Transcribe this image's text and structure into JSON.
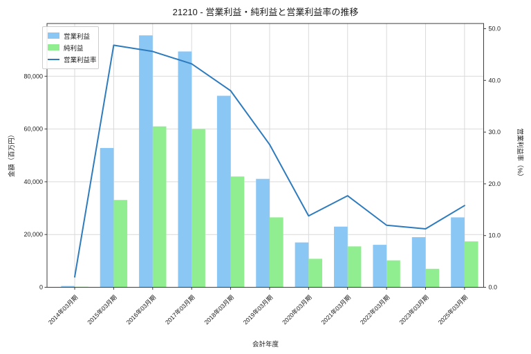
{
  "chart_data": {
    "type": "bar+line",
    "title": "21210 - 営業利益・純利益と営業利益率の推移",
    "xlabel": "会計年度",
    "ylabel_left": "金額（百万円）",
    "ylabel_right": "営業利益率（%）",
    "grid": true,
    "legend_position": "upper left",
    "categories": [
      "2014年03月期",
      "2015年03月期",
      "2016年03月期",
      "2017年03月期",
      "2018年03月期",
      "2019年03月期",
      "2020年03月期",
      "2021年03月期",
      "2022年03月期",
      "2023年03月期",
      "2025年03月期"
    ],
    "series": [
      {
        "name": "営業利益",
        "type": "bar",
        "color": "#8bc7f5",
        "values": [
          500,
          52800,
          95500,
          89400,
          72600,
          41100,
          17000,
          23000,
          16100,
          19000,
          26500
        ]
      },
      {
        "name": "純利益",
        "type": "bar",
        "color": "#90ee90",
        "values": [
          200,
          33100,
          61000,
          60000,
          42000,
          26500,
          10800,
          15500,
          10200,
          7000,
          17400
        ]
      }
    ],
    "line": {
      "name": "営業利益率",
      "type": "line",
      "color": "#2d7bbd",
      "unit": "%",
      "values": [
        2.0,
        46.8,
        45.6,
        43.2,
        38.0,
        27.6,
        13.8,
        17.7,
        12.0,
        11.3,
        15.8
      ]
    },
    "axes": {
      "left": {
        "ticks": [
          "0",
          "20,000",
          "40,000",
          "60,000",
          "80,000"
        ],
        "tick_values": [
          0,
          20000,
          40000,
          60000,
          80000
        ],
        "min": 0,
        "max": 100000
      },
      "right": {
        "ticks": [
          "0.0",
          "10.0",
          "20.0",
          "30.0",
          "40.0",
          "50.0"
        ],
        "tick_values": [
          0,
          10,
          20,
          30,
          40,
          50
        ],
        "min": 0,
        "max": 51
      }
    },
    "colors": {
      "grid": "#d9d9d9",
      "spine": "#3b3b3b",
      "text": "#1a1a1a",
      "background": "#ffffff"
    }
  }
}
